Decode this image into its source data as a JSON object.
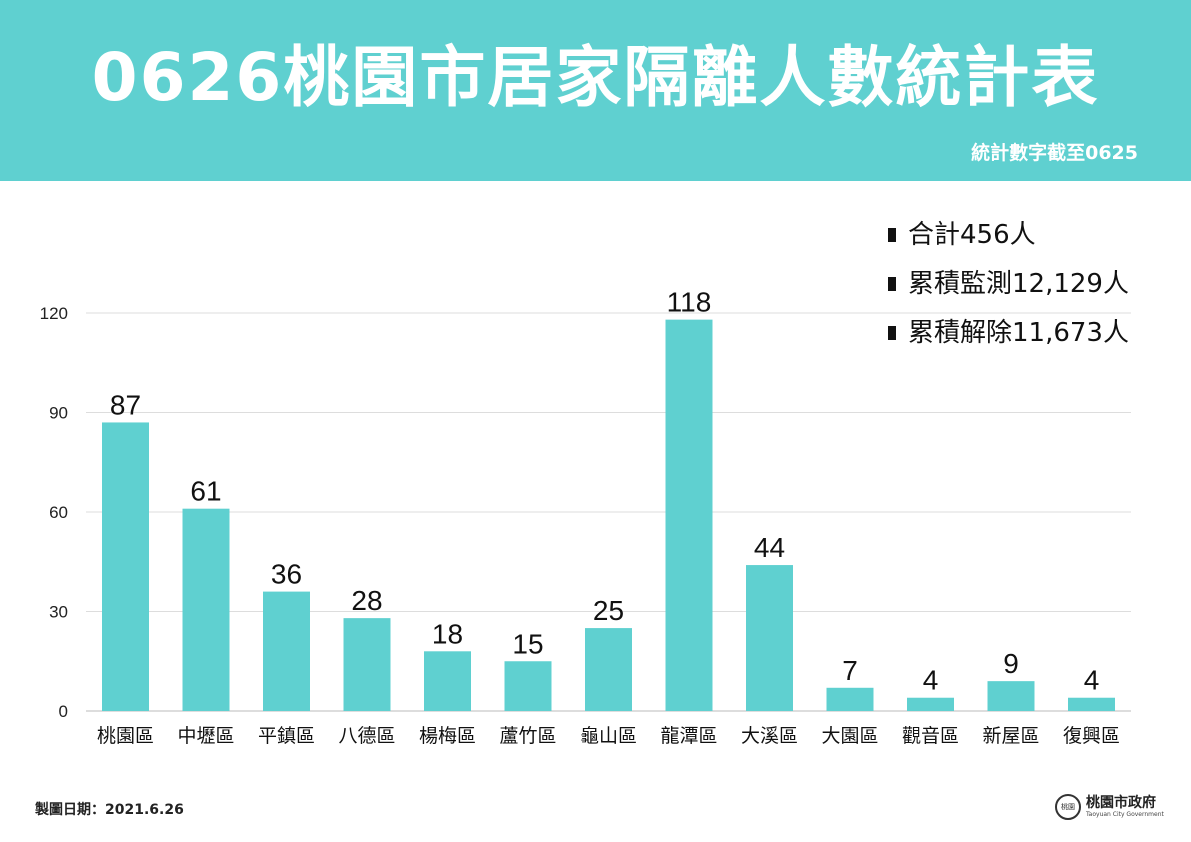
{
  "header": {
    "title": "0626桃園市居家隔離人數統計表",
    "subtitle": "統計數字截至0625",
    "background": "#5fd0d0"
  },
  "summary": [
    {
      "label": "合計456人"
    },
    {
      "label": "累積監測12,129人"
    },
    {
      "label": "累積解除11,673人"
    }
  ],
  "chart_data": {
    "type": "bar",
    "categories": [
      "桃園區",
      "中壢區",
      "平鎮區",
      "八德區",
      "楊梅區",
      "蘆竹區",
      "龜山區",
      "龍潭區",
      "大溪區",
      "大園區",
      "觀音區",
      "新屋區",
      "復興區"
    ],
    "values": [
      87,
      61,
      36,
      28,
      18,
      15,
      25,
      118,
      44,
      7,
      4,
      9,
      4
    ],
    "ylim": [
      0,
      120
    ],
    "yticks": [
      0,
      30,
      60,
      90,
      120
    ],
    "grid": true,
    "bar_color": "#5fd0d0",
    "show_data_labels": true
  },
  "footer": {
    "date_label": "製圖日期：2021.6.26",
    "logo_name": "桃園市政府",
    "logo_en": "Taoyuan City Government",
    "logo_seal": "桃園"
  }
}
